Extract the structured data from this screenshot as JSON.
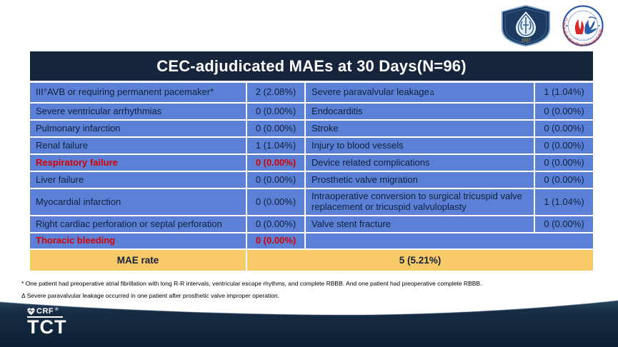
{
  "slide": {
    "title": "CEC-adjudicated MAEs at 30 Days(N=96)"
  },
  "table": {
    "rows": [
      {
        "left_label": "III°AVB or requiring permanent pacemaker*",
        "left_value": "2 (2.08%)",
        "left_red": false,
        "right_label": "Severe paravalvular leakage",
        "right_sup": "Δ",
        "right_value": "1 (1.04%)",
        "right_empty": false
      },
      {
        "left_label": "Severe ventricular arrhythmias",
        "left_value": "0 (0.00%)",
        "left_red": false,
        "right_label": "Endocarditis",
        "right_sup": "",
        "right_value": "0 (0.00%)",
        "right_empty": false
      },
      {
        "left_label": "Pulmonary infarction",
        "left_value": "0 (0.00%)",
        "left_red": false,
        "right_label": "Stroke",
        "right_sup": "",
        "right_value": "0 (0.00%)",
        "right_empty": false
      },
      {
        "left_label": "Renal failure",
        "left_value": "1 (1.04%)",
        "left_red": false,
        "right_label": "Injury to blood vessels",
        "right_sup": "",
        "right_value": "0 (0.00%)",
        "right_empty": false
      },
      {
        "left_label": "Respiratory failure",
        "left_value": "0 (0.00%)",
        "left_red": true,
        "right_label": "Device related complications",
        "right_sup": "",
        "right_value": "0 (0.00%)",
        "right_empty": false
      },
      {
        "left_label": "Liver failure",
        "left_value": "0 (0.00%)",
        "left_red": false,
        "right_label": "Prosthetic valve migration",
        "right_sup": "",
        "right_value": "0 (0.00%)",
        "right_empty": false
      },
      {
        "left_label": "Myocardial infarction",
        "left_value": "0 (0.00%)",
        "left_red": false,
        "right_label": "Intraoperative conversion to surgical tricuspid valve replacement or tricuspid valvuloplasty",
        "right_sup": "",
        "right_value": "1 (1.04%)",
        "right_empty": false
      },
      {
        "left_label": "Right cardiac perforation or septal perforation",
        "left_value": "0 (0.00%)",
        "left_red": false,
        "right_label": "Valve stent fracture",
        "right_sup": "",
        "right_value": "0 (0.00%)",
        "right_empty": false
      },
      {
        "left_label": "Thoracic bleeding",
        "left_value": "0 (0.00%)",
        "left_red": true,
        "right_label": "",
        "right_sup": "",
        "right_value": "",
        "right_empty": true
      }
    ],
    "total": {
      "label": "MAE rate",
      "value": "5 (5.21%)"
    }
  },
  "footnotes": {
    "line1": "* One patient had preoperative atrial fibrillation with long R-R intervals, ventricular escape rhythms, and complete RBBB. And one patient had preoperative complete RBBB.",
    "line2": "Δ Severe paravalvular leakage occurred in one patient after prosthetic valve improper operation."
  },
  "footer": {
    "crf_label": "CRF",
    "crf_mark": "®",
    "tct_label": "TCT"
  },
  "logos": {
    "shield_year": "1937",
    "center_ring_text": "国家放射与治疗临床医学研究中心"
  },
  "colors": {
    "title_navy": "#16253B",
    "row_blue": "#5B80D5",
    "cell_text_navy": "#10213F",
    "highlight_red": "#D80000",
    "total_gold": "#F8C967",
    "footer_navy": "#0E1F33"
  }
}
